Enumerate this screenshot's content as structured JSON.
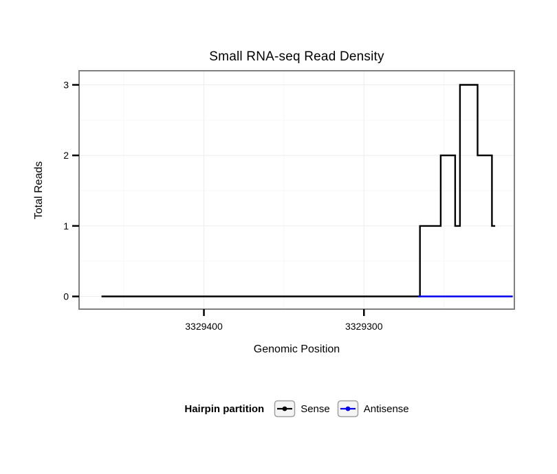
{
  "chart_data": {
    "type": "line",
    "style": "step",
    "title": "Small RNA-seq Read Density",
    "xlabel": "Genomic Position",
    "ylabel": "Total Reads",
    "x_reversed": true,
    "xlim": [
      3329478,
      3329206
    ],
    "ylim": [
      -0.18,
      3.2
    ],
    "x_ticks": [
      {
        "value": 3329400,
        "label": "3329400"
      },
      {
        "value": 3329300,
        "label": "3329300"
      }
    ],
    "x_minor_ticks": [
      3329450,
      3329350,
      3329250
    ],
    "y_ticks": [
      {
        "value": 0,
        "label": "0"
      },
      {
        "value": 1,
        "label": "1"
      },
      {
        "value": 2,
        "label": "2"
      },
      {
        "value": 3,
        "label": "3"
      }
    ],
    "y_minor_ticks": [
      0.5,
      1.5,
      2.5
    ],
    "grid": true,
    "legend_position": "bottom",
    "legend_title": "Hairpin partition",
    "series": [
      {
        "name": "Sense",
        "color": "#000000",
        "step_points": [
          [
            3329464,
            0
          ],
          [
            3329265,
            0
          ],
          [
            3329265,
            1
          ],
          [
            3329252,
            1
          ],
          [
            3329252,
            2
          ],
          [
            3329243,
            2
          ],
          [
            3329243,
            1
          ],
          [
            3329240,
            1
          ],
          [
            3329240,
            3
          ],
          [
            3329229,
            3
          ],
          [
            3329229,
            2
          ],
          [
            3329220,
            2
          ],
          [
            3329220,
            1
          ],
          [
            3329218,
            1
          ]
        ]
      },
      {
        "name": "Antisense",
        "color": "#0000EE",
        "step_points": [
          [
            3329266,
            0
          ],
          [
            3329207,
            0
          ]
        ]
      }
    ]
  }
}
